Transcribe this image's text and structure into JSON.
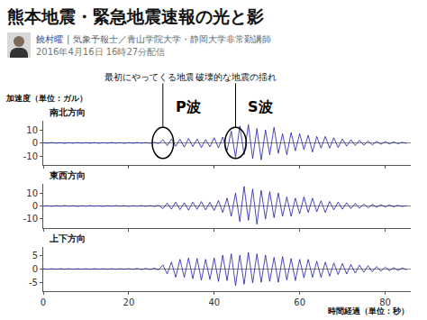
{
  "header": {
    "title": "熊本地震・緊急地震速報の光と影",
    "author": "饒村曜",
    "affiliation": "| 気象予報士／青山学院大学・静岡大学非常勤講師",
    "date": "2016年4月16日 16時27分配信"
  },
  "chart_data": [
    {
      "type": "line",
      "title": "南北方向",
      "ylabel": "加速度（単位：ガル）",
      "color": "#1a1aa8",
      "grid": false,
      "tick_labels": "y",
      "xlim": [
        0,
        86
      ],
      "xticks": [
        0,
        20,
        40,
        60,
        80
      ],
      "ylim": [
        -17,
        17
      ],
      "yticks": [
        -10,
        0,
        10
      ],
      "annotations": [
        {
          "x": 28,
          "label": "P波",
          "text": "最初にやってくる地震の揺れ"
        },
        {
          "x": 45,
          "label": "S波",
          "text": "破壊的な地震の揺れ"
        }
      ],
      "x": [
        0,
        1,
        2,
        3,
        4,
        5,
        6,
        7,
        8,
        9,
        10,
        11,
        12,
        13,
        14,
        15,
        16,
        17,
        18,
        19,
        20,
        21,
        22,
        23,
        24,
        25,
        26,
        27,
        28,
        29,
        30,
        31,
        32,
        33,
        34,
        35,
        36,
        37,
        38,
        39,
        40,
        41,
        42,
        43,
        44,
        45,
        46,
        47,
        48,
        49,
        50,
        51,
        52,
        53,
        54,
        55,
        56,
        57,
        58,
        59,
        60,
        61,
        62,
        63,
        64,
        65,
        66,
        67,
        68,
        69,
        70,
        71,
        72,
        73,
        74,
        75,
        76,
        77,
        78,
        79,
        80,
        81,
        82,
        83,
        84,
        85
      ],
      "values": [
        0.2,
        -0.2,
        0.3,
        -0.2,
        0.2,
        -0.3,
        0.2,
        -0.2,
        0.3,
        -0.2,
        0.2,
        -0.2,
        0.3,
        -0.3,
        0.2,
        -0.2,
        0.3,
        -0.2,
        0.2,
        -0.3,
        0.2,
        -0.2,
        0.3,
        -0.2,
        0.3,
        -0.3,
        0.4,
        -0.5,
        2.5,
        -2,
        3,
        -2.5,
        2.8,
        -3.2,
        3.5,
        -2.8,
        3,
        -3.5,
        2.6,
        -3,
        4,
        -3.8,
        4.5,
        -6,
        9,
        -11,
        13,
        -9,
        14,
        -12,
        11,
        -13,
        10,
        -9,
        12,
        -8,
        7,
        -9,
        8,
        -6,
        7,
        -5,
        6,
        -7,
        5,
        -4,
        5,
        -4,
        4,
        -3.5,
        3,
        -2.5,
        2.5,
        -2,
        2,
        -1.8,
        1.5,
        -1.5,
        1.2,
        -1,
        1,
        -0.8,
        0.8,
        -0.6,
        0.5,
        -0.4
      ]
    },
    {
      "type": "line",
      "title": "東西方向",
      "color": "#1a1aa8",
      "grid": false,
      "tick_labels": "y",
      "xlim": [
        0,
        86
      ],
      "xticks": [
        0,
        20,
        40,
        60,
        80
      ],
      "ylim": [
        -17,
        17
      ],
      "yticks": [
        -10,
        0,
        10
      ],
      "x": [
        0,
        1,
        2,
        3,
        4,
        5,
        6,
        7,
        8,
        9,
        10,
        11,
        12,
        13,
        14,
        15,
        16,
        17,
        18,
        19,
        20,
        21,
        22,
        23,
        24,
        25,
        26,
        27,
        28,
        29,
        30,
        31,
        32,
        33,
        34,
        35,
        36,
        37,
        38,
        39,
        40,
        41,
        42,
        43,
        44,
        45,
        46,
        47,
        48,
        49,
        50,
        51,
        52,
        53,
        54,
        55,
        56,
        57,
        58,
        59,
        60,
        61,
        62,
        63,
        64,
        65,
        66,
        67,
        68,
        69,
        70,
        71,
        72,
        73,
        74,
        75,
        76,
        77,
        78,
        79,
        80,
        81,
        82,
        83,
        84,
        85
      ],
      "values": [
        -0.2,
        0.2,
        -0.3,
        0.2,
        -0.2,
        0.3,
        -0.2,
        0.2,
        -0.3,
        0.2,
        -0.2,
        0.3,
        -0.2,
        0.2,
        -0.3,
        0.2,
        -0.2,
        0.3,
        -0.2,
        0.2,
        -0.3,
        0.2,
        -0.2,
        0.3,
        -0.3,
        0.3,
        -0.4,
        0.5,
        -2,
        2.2,
        -2.5,
        3,
        -2.8,
        2.5,
        -3.2,
        3,
        -2.6,
        3.4,
        -3,
        2.8,
        -3.5,
        4.2,
        -5,
        6,
        -8,
        10,
        -12,
        15,
        -11,
        13,
        -14,
        12,
        -10,
        11,
        -9,
        10,
        -8,
        7,
        -8,
        6,
        -6,
        7,
        -5,
        6,
        -4.5,
        4,
        -5,
        3.5,
        -3,
        3,
        -2.5,
        2.5,
        -2,
        2,
        -1.8,
        1.5,
        -1.5,
        1.2,
        -1,
        1,
        -0.8,
        0.8,
        -0.6,
        0.5,
        -0.4,
        0.3
      ]
    },
    {
      "type": "line",
      "title": "上下方向",
      "xlabel": "時間経過（単位：秒）",
      "color": "#1a1aa8",
      "grid": false,
      "xlim": [
        0,
        86
      ],
      "xticks": [
        0,
        20,
        40,
        60,
        80
      ],
      "ylim": [
        -8,
        8
      ],
      "yticks": [
        -5,
        0,
        5
      ],
      "x": [
        0,
        1,
        2,
        3,
        4,
        5,
        6,
        7,
        8,
        9,
        10,
        11,
        12,
        13,
        14,
        15,
        16,
        17,
        18,
        19,
        20,
        21,
        22,
        23,
        24,
        25,
        26,
        27,
        28,
        29,
        30,
        31,
        32,
        33,
        34,
        35,
        36,
        37,
        38,
        39,
        40,
        41,
        42,
        43,
        44,
        45,
        46,
        47,
        48,
        49,
        50,
        51,
        52,
        53,
        54,
        55,
        56,
        57,
        58,
        59,
        60,
        61,
        62,
        63,
        64,
        65,
        66,
        67,
        68,
        69,
        70,
        71,
        72,
        73,
        74,
        75,
        76,
        77,
        78,
        79,
        80,
        81,
        82,
        83,
        84,
        85
      ],
      "values": [
        0.1,
        -0.1,
        0.1,
        -0.1,
        0.1,
        -0.1,
        0.1,
        -0.1,
        0.1,
        -0.1,
        0.1,
        -0.1,
        0.1,
        -0.1,
        0.1,
        -0.1,
        0.1,
        -0.1,
        0.1,
        -0.1,
        0.1,
        -0.1,
        0.2,
        -0.2,
        0.2,
        -0.2,
        0.3,
        -0.3,
        1.5,
        -1.8,
        2.5,
        -3,
        3.5,
        -3,
        4,
        -3.5,
        3.8,
        -4,
        3.5,
        -3.8,
        4,
        -4.5,
        5,
        -4.2,
        5.5,
        -6,
        5,
        -5.5,
        6,
        -5,
        5.5,
        -4.8,
        5,
        -4.5,
        4.2,
        -4.8,
        4.5,
        -4,
        3.8,
        -4.2,
        3.5,
        -3.2,
        3.5,
        -3,
        2.8,
        -3,
        2.5,
        -2.6,
        2.2,
        -2,
        2,
        -1.8,
        1.6,
        -1.5,
        1.4,
        -1.2,
        1.2,
        -1,
        0.9,
        -0.8,
        0.7,
        -0.6,
        0.5,
        -0.5,
        0.4,
        -0.3
      ]
    }
  ]
}
